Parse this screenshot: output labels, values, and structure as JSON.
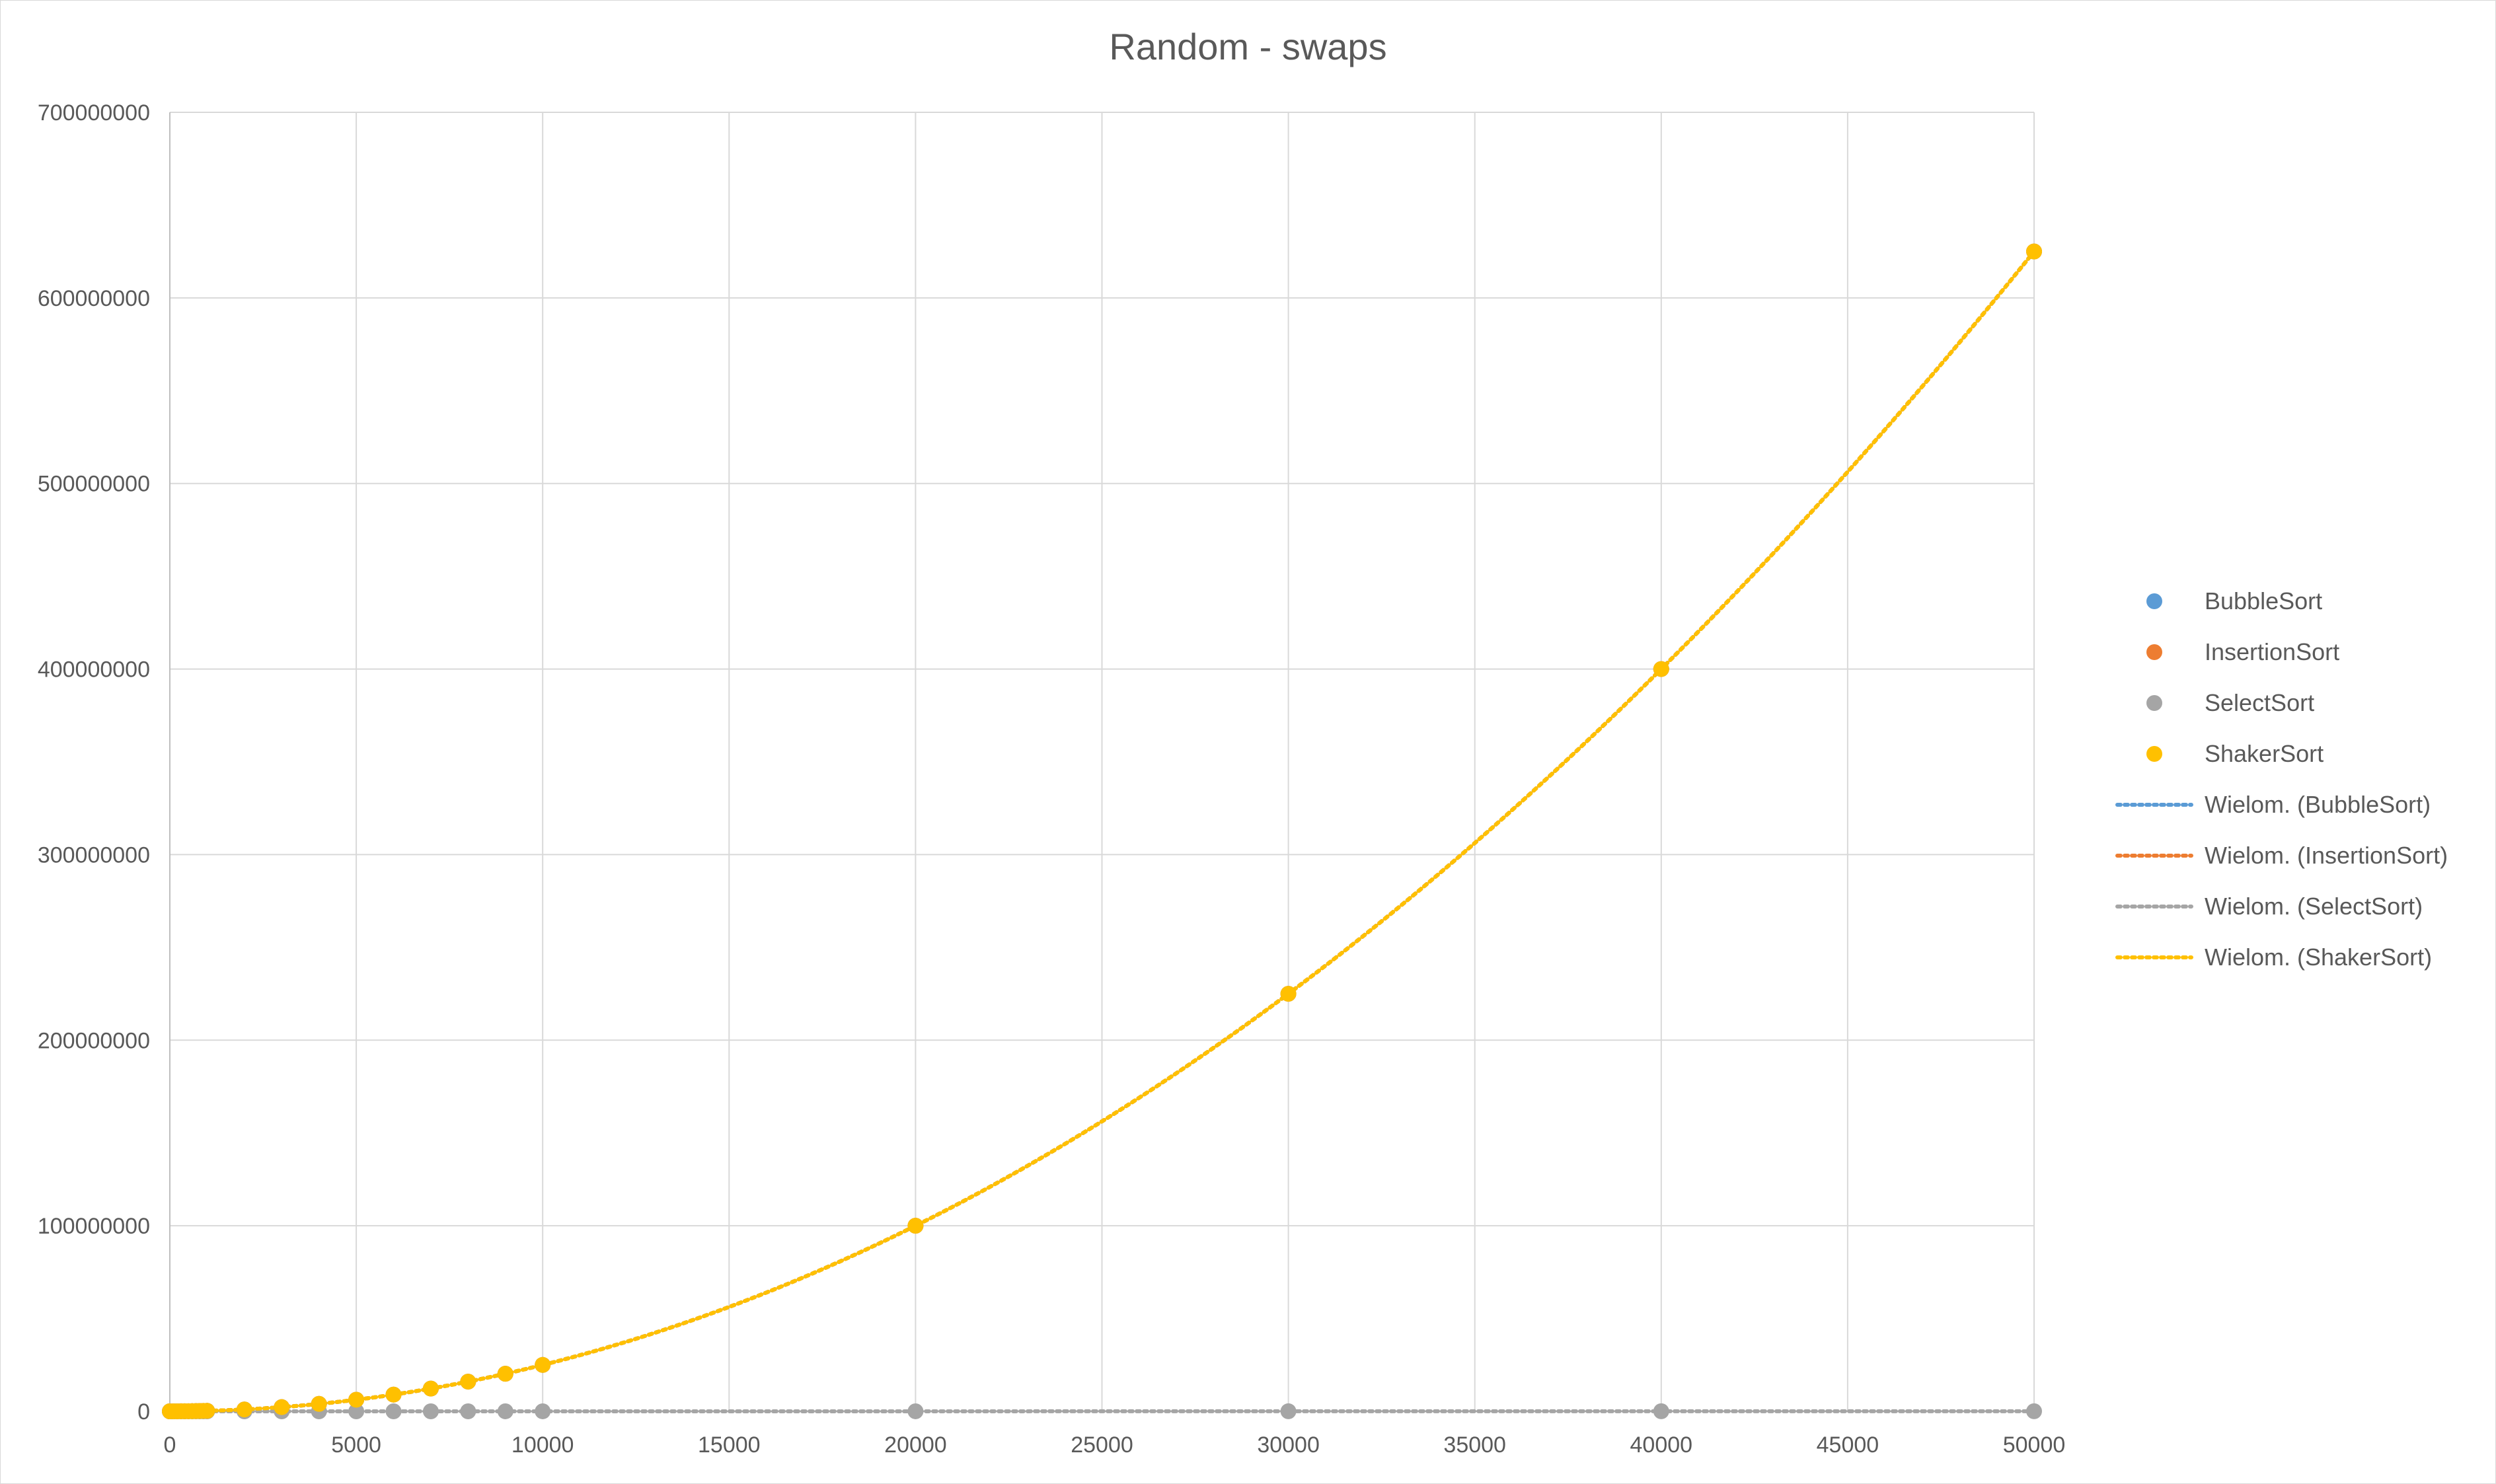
{
  "chart_data": {
    "type": "scatter",
    "title": "Random - swaps",
    "xlabel": "",
    "ylabel": "",
    "xlim": [
      0,
      50000
    ],
    "ylim": [
      0,
      700000000
    ],
    "x_ticks": [
      "0",
      "5000",
      "10000",
      "15000",
      "20000",
      "25000",
      "30000",
      "35000",
      "40000",
      "45000",
      "50000"
    ],
    "y_ticks": [
      "0",
      "100000000",
      "200000000",
      "300000000",
      "400000000",
      "500000000",
      "600000000",
      "700000000"
    ],
    "grid": "on",
    "legend_position": "right",
    "x": [
      0,
      100,
      200,
      300,
      400,
      500,
      600,
      700,
      800,
      900,
      1000,
      2000,
      3000,
      4000,
      5000,
      6000,
      7000,
      8000,
      9000,
      10000,
      20000,
      30000,
      40000,
      50000
    ],
    "series": [
      {
        "name": "BubbleSort",
        "color": "#5b9bd5",
        "values": [
          0,
          2500,
          10000,
          22500,
          40000,
          62500,
          90000,
          122500,
          160000,
          202500,
          250000,
          1000000,
          2250000,
          4000000,
          6250000,
          9000000,
          12250000,
          16000000,
          20250000,
          25000000,
          100000000,
          225000000,
          400000000,
          625000000
        ]
      },
      {
        "name": "InsertionSort",
        "color": "#ed7d31",
        "values": [
          0,
          2500,
          10000,
          22500,
          40000,
          62500,
          90000,
          122500,
          160000,
          202500,
          250000,
          1000000,
          2250000,
          4000000,
          6250000,
          9000000,
          12250000,
          16000000,
          20250000,
          25000000,
          100000000,
          225000000,
          400000000,
          625000000
        ]
      },
      {
        "name": "SelectSort",
        "color": "#a5a5a5",
        "values": [
          0,
          100,
          200,
          300,
          400,
          500,
          600,
          700,
          800,
          900,
          1000,
          2000,
          3000,
          4000,
          5000,
          6000,
          7000,
          8000,
          9000,
          10000,
          20000,
          30000,
          40000,
          50000
        ]
      },
      {
        "name": "ShakerSort",
        "color": "#ffc000",
        "values": [
          0,
          2500,
          10000,
          22500,
          40000,
          62500,
          90000,
          122500,
          160000,
          202500,
          250000,
          1000000,
          2250000,
          4000000,
          6250000,
          9000000,
          12250000,
          16000000,
          20250000,
          25000000,
          100000000,
          225000000,
          400000000,
          625000000
        ]
      }
    ],
    "trendlines": [
      {
        "name": "Wielom. (BubbleSort)",
        "color": "#5b9bd5",
        "series": "BubbleSort"
      },
      {
        "name": "Wielom. (InsertionSort)",
        "color": "#ed7d31",
        "series": "InsertionSort"
      },
      {
        "name": "Wielom. (SelectSort)",
        "color": "#a5a5a5",
        "series": "SelectSort"
      },
      {
        "name": "Wielom. (ShakerSort)",
        "color": "#ffc000",
        "series": "ShakerSort"
      }
    ]
  }
}
